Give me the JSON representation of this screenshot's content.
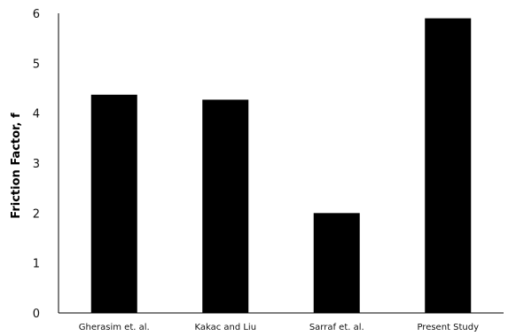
{
  "chart_data": {
    "type": "bar",
    "title": "",
    "xlabel": "",
    "ylabel": "Friction Factor, f",
    "categories": [
      "Gherasim et. al.",
      "Kakac and Liu",
      "Sarraf et. al.",
      "Present Study"
    ],
    "values": [
      4.37,
      4.27,
      2.0,
      5.9
    ],
    "ylim": [
      0,
      6
    ],
    "yticks": [
      "0",
      "1",
      "2",
      "3",
      "4",
      "5",
      "6"
    ],
    "grid": false,
    "legend": "none",
    "bar_color": "#000000"
  }
}
